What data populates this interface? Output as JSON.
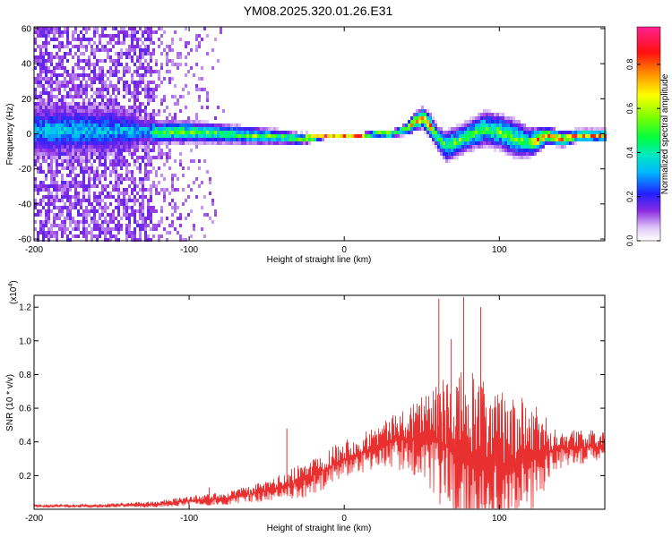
{
  "title": "YM08.2025.320.01.26.E31",
  "colors": {
    "signal_line": "#e83030",
    "background": "#ffffff",
    "axis": "#000000",
    "colormap": [
      "#ffffff",
      "#d9b8f5",
      "#8a2be2",
      "#0000ff",
      "#00c8ff",
      "#00ff80",
      "#80ff00",
      "#ffff00",
      "#ff8000",
      "#ff0000",
      "#ff1493"
    ]
  },
  "chart_data": [
    {
      "type": "heatmap",
      "name": "spectrogram",
      "title": "YM08.2025.320.01.26.E31",
      "xlabel": "Height of straight line (km)",
      "ylabel": "Frequency (Hz)",
      "xlim": [
        -200,
        168
      ],
      "ylim": [
        -61,
        61
      ],
      "xticks": [
        -200,
        -100,
        0,
        100
      ],
      "yticks": [
        -60,
        -40,
        -20,
        0,
        20,
        40,
        60
      ],
      "colorbar": {
        "label": "Normalized spectral amplitude",
        "range": [
          0.0,
          0.97
        ],
        "ticks": [
          0.0,
          0.2,
          0.4,
          0.6,
          0.8
        ]
      },
      "ridge": {
        "x": [
          -200,
          -150,
          -120,
          -100,
          -80,
          -60,
          -40,
          -30,
          -20,
          -10,
          0,
          10,
          20,
          30,
          40,
          45,
          50,
          55,
          60,
          65,
          70,
          80,
          90,
          100,
          110,
          120,
          130,
          140,
          150,
          160,
          168
        ],
        "center": [
          3,
          3,
          2,
          2,
          1,
          0,
          -1,
          -2,
          -1,
          0,
          0,
          0,
          1,
          1,
          4,
          8,
          10,
          5,
          -2,
          -6,
          -4,
          0,
          4,
          2,
          -2,
          -4,
          0,
          -2,
          0,
          0,
          0
        ],
        "width": [
          25,
          22,
          9,
          9,
          8,
          7,
          6,
          5,
          3,
          2,
          2,
          2,
          2,
          3,
          5,
          7,
          8,
          9,
          10,
          12,
          12,
          12,
          14,
          14,
          15,
          11,
          7,
          6,
          5,
          5,
          5
        ]
      },
      "noise_region_km": [
        -200,
        -75
      ]
    },
    {
      "type": "line",
      "name": "snr",
      "xlabel": "Height of straight line (km)",
      "ylabel": "SNR (10 * v/v)",
      "y_multiplier": "(x10",
      "y_multiplier_exp": "4",
      "y_multiplier_close": ")",
      "xlim": [
        -200,
        168
      ],
      "ylim": [
        0,
        1.27
      ],
      "xticks": [
        -200,
        -100,
        0,
        100
      ],
      "yticks": [
        0.2,
        0.4,
        0.6,
        0.8,
        1.0,
        1.2
      ],
      "ytick_labels": [
        "0.2",
        "0.4",
        "0.6",
        "0.8",
        "1.0",
        "1.2"
      ],
      "envelope": {
        "x": [
          -200,
          -160,
          -120,
          -100,
          -80,
          -60,
          -40,
          -30,
          -20,
          -10,
          0,
          10,
          20,
          30,
          40,
          50,
          60,
          70,
          80,
          90,
          100,
          110,
          120,
          130,
          140,
          150,
          168
        ],
        "base": [
          0.02,
          0.02,
          0.03,
          0.05,
          0.06,
          0.09,
          0.13,
          0.16,
          0.2,
          0.25,
          0.3,
          0.33,
          0.37,
          0.4,
          0.42,
          0.43,
          0.4,
          0.36,
          0.3,
          0.26,
          0.26,
          0.28,
          0.3,
          0.33,
          0.36,
          0.37,
          0.37
        ],
        "amp": [
          0.01,
          0.01,
          0.02,
          0.03,
          0.04,
          0.05,
          0.08,
          0.1,
          0.12,
          0.12,
          0.12,
          0.12,
          0.13,
          0.15,
          0.2,
          0.28,
          0.35,
          0.45,
          0.55,
          0.5,
          0.45,
          0.4,
          0.35,
          0.22,
          0.12,
          0.1,
          0.1
        ]
      },
      "spikes": [
        {
          "x": -87,
          "y": 0.13
        },
        {
          "x": -37,
          "y": 0.48
        },
        {
          "x": 61,
          "y": 1.25
        },
        {
          "x": 77,
          "y": 1.26
        },
        {
          "x": 69,
          "y": 1.01
        },
        {
          "x": 88,
          "y": 1.2
        }
      ]
    }
  ]
}
